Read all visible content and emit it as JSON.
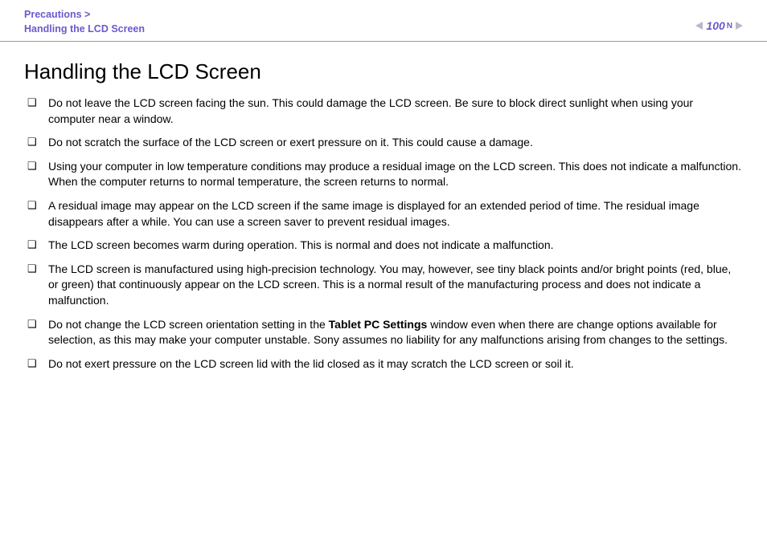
{
  "header": {
    "breadcrumb_parent": "Precautions >",
    "breadcrumb_current": "Handling the LCD Screen",
    "page_number": "100",
    "n_label": "N"
  },
  "title": "Handling the LCD Screen",
  "bullets": [
    {
      "pre": "Do not leave the LCD screen facing the sun. This could damage the LCD screen. Be sure to block direct sunlight when using your computer near a window.",
      "bold": "",
      "post": ""
    },
    {
      "pre": "Do not scratch the surface of the LCD screen or exert pressure on it. This could cause a damage.",
      "bold": "",
      "post": ""
    },
    {
      "pre": "Using your computer in low temperature conditions may produce a residual image on the LCD screen. This does not indicate a malfunction. When the computer returns to normal temperature, the screen returns to normal.",
      "bold": "",
      "post": ""
    },
    {
      "pre": "A residual image may appear on the LCD screen if the same image is displayed for an extended period of time. The residual image disappears after a while. You can use a screen saver to prevent residual images.",
      "bold": "",
      "post": ""
    },
    {
      "pre": "The LCD screen becomes warm during operation. This is normal and does not indicate a malfunction.",
      "bold": "",
      "post": ""
    },
    {
      "pre": "The LCD screen is manufactured using high-precision technology. You may, however, see tiny black points and/or bright points (red, blue, or green) that continuously appear on the LCD screen. This is a normal result of the manufacturing process and does not indicate a malfunction.",
      "bold": "",
      "post": ""
    },
    {
      "pre": "Do not change the LCD screen orientation setting in the ",
      "bold": "Tablet PC Settings",
      "post": " window even when there are change options available for selection, as this may make your computer unstable. Sony assumes no liability for any malfunctions arising from changes to the settings."
    },
    {
      "pre": "Do not exert pressure on the LCD screen lid with the lid closed as it may scratch the LCD screen or soil it.",
      "bold": "",
      "post": ""
    }
  ]
}
